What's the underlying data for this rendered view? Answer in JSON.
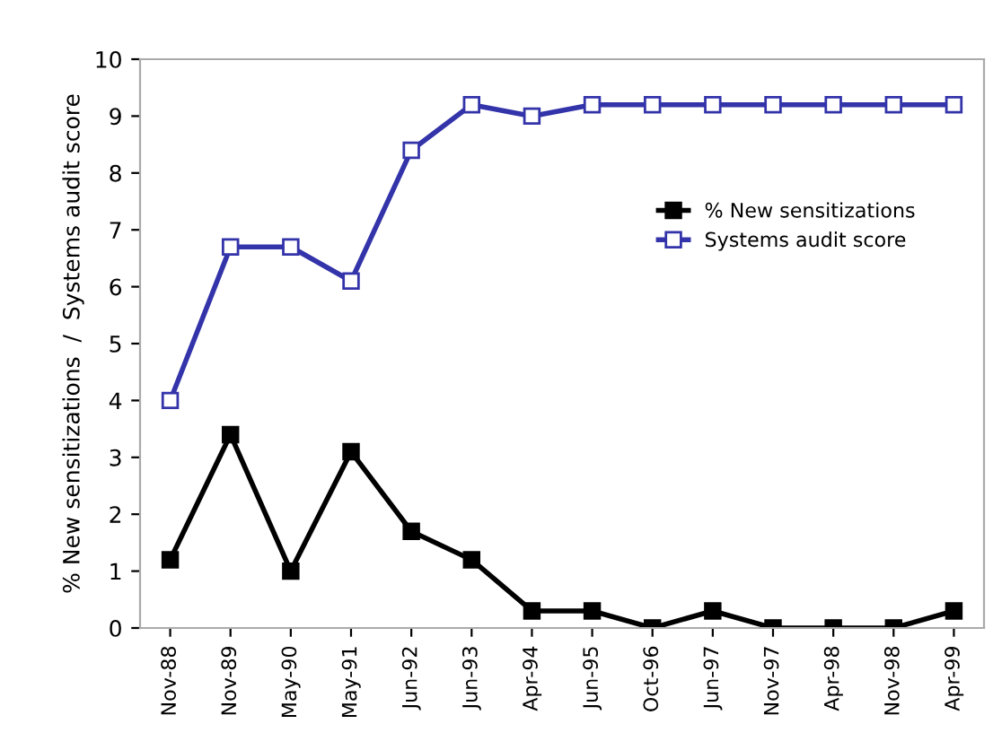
{
  "chart_data": {
    "type": "line",
    "ylabel": "% New sensitizations  /  Systems audit score",
    "categories": [
      "Nov-88",
      "Nov-89",
      "May-90",
      "May-91",
      "Jun-92",
      "Jun-93",
      "Apr-94",
      "Jun-95",
      "Oct-96",
      "Jun-97",
      "Nov-97",
      "Apr-98",
      "Nov-98",
      "Apr-99"
    ],
    "series": [
      {
        "name": "% New sensitizations",
        "color": "#000000",
        "marker": "square",
        "values": [
          1.2,
          3.4,
          1.0,
          3.1,
          1.7,
          1.2,
          0.3,
          0.3,
          0.0,
          0.3,
          0.0,
          0.0,
          0.0,
          0.3
        ]
      },
      {
        "name": "Systems audit score",
        "color": "#3333aa",
        "marker": "square_open",
        "values": [
          4.0,
          6.7,
          6.7,
          6.1,
          8.4,
          9.2,
          9.0,
          9.2,
          9.2,
          9.2,
          9.2,
          9.2,
          9.2,
          9.2
        ]
      }
    ],
    "ylim": [
      0,
      10
    ],
    "yticks": [
      0,
      1,
      2,
      3,
      4,
      5,
      6,
      7,
      8,
      9,
      10
    ],
    "grid": false,
    "legend": "top right",
    "line_style": "solid"
  }
}
